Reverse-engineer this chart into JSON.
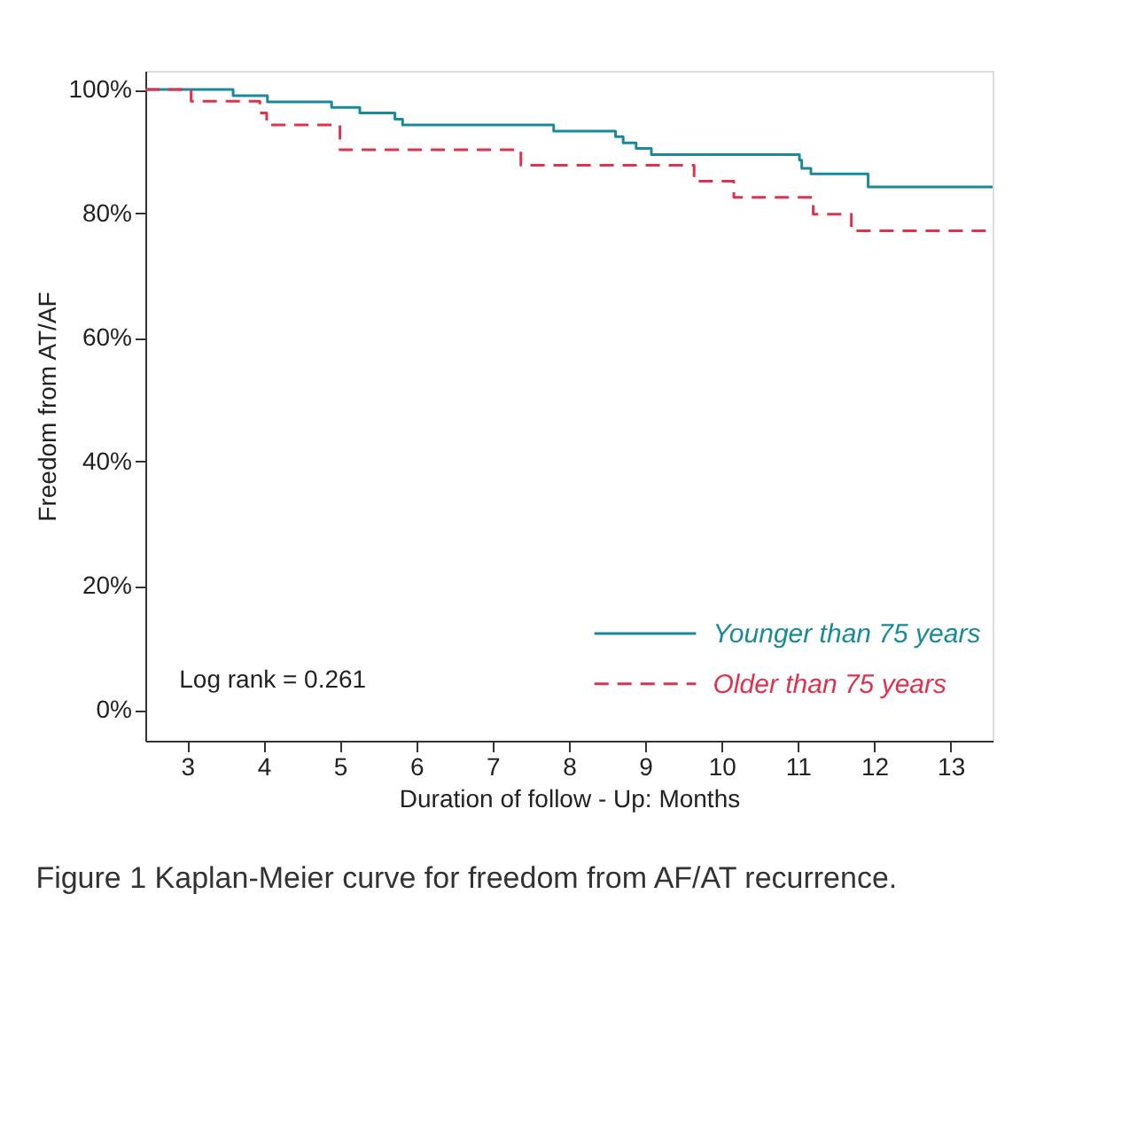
{
  "chart_data": {
    "type": "step",
    "title": "Figure 1 Kaplan-Meier curve for freedom from AF/AT recurrence.",
    "xlabel": "Duration of follow - Up: Months",
    "ylabel": "Freedom from AT/AF",
    "xlim": [
      2.45,
      13.55
    ],
    "xticks": [
      3,
      4,
      5,
      6,
      7,
      8,
      9,
      10,
      11,
      12,
      13
    ],
    "ylim": [
      -5,
      103
    ],
    "yticks": [
      {
        "value": 0,
        "label": "0%"
      },
      {
        "value": 20,
        "label": "20%"
      },
      {
        "value": 40,
        "label": "40%"
      },
      {
        "value": 60,
        "label": "60%"
      },
      {
        "value": 80,
        "label": "80%"
      },
      {
        "value": 100,
        "label": "100%"
      }
    ],
    "grid": false,
    "legend": "bottom right",
    "annotations": [
      "Log rank = 0.261"
    ],
    "series": [
      {
        "name": "Younger than 75 years",
        "color": "#1a8a9a",
        "line_style": "solid",
        "x": [
          2.45,
          3.6,
          4.05,
          4.89,
          5.26,
          5.72,
          5.82,
          7.8,
          8.61,
          8.71,
          8.88,
          9.08,
          11.02,
          11.05,
          11.17,
          11.92,
          13.55
        ],
        "values": [
          100,
          99.0,
          98.0,
          97.1,
          96.2,
          95.2,
          94.3,
          93.3,
          92.4,
          91.4,
          90.5,
          89.5,
          88.6,
          87.3,
          86.4,
          84.3,
          84.3
        ]
      },
      {
        "name": "Older than 75 years",
        "color": "#e0324f",
        "line_style": "dashed",
        "x": [
          2.45,
          3.05,
          3.95,
          4.04,
          5.0,
          7.37,
          9.64,
          10.16,
          11.2,
          11.7,
          13.55
        ],
        "values": [
          100,
          98.1,
          96.2,
          94.3,
          90.3,
          87.8,
          85.2,
          82.6,
          79.9,
          77.2,
          77.2
        ]
      }
    ]
  }
}
